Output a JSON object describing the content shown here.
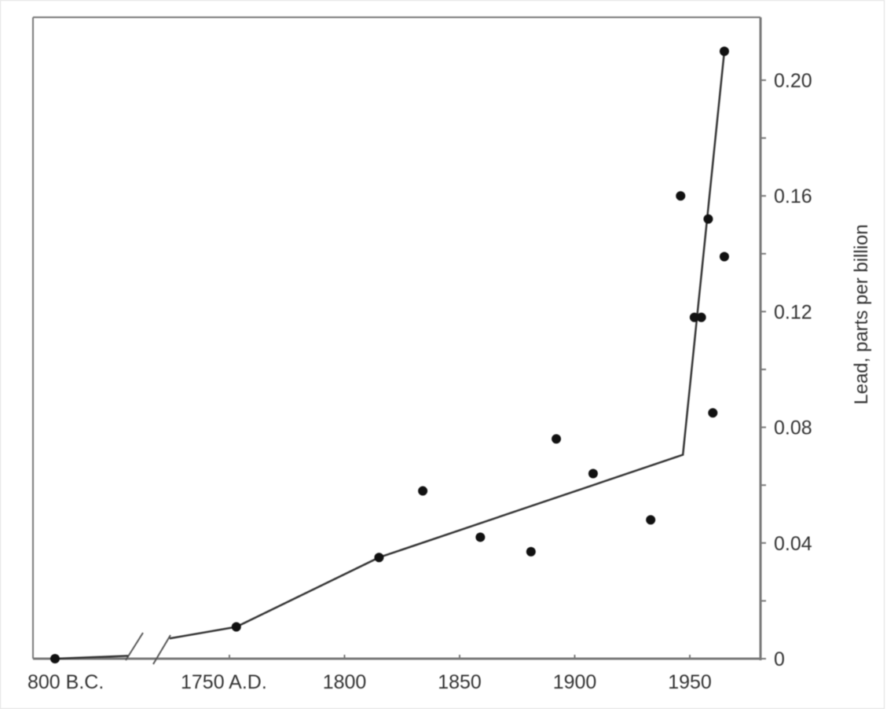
{
  "chart_data": {
    "type": "scatter",
    "title": "",
    "xlabel": "",
    "ylabel": "Lead, parts per billion",
    "ylim": [
      0,
      0.22
    ],
    "y_axis_side": "right",
    "y_ticks": [
      0,
      0.04,
      0.08,
      0.12,
      0.16,
      0.2
    ],
    "y_tick_labels": [
      "0",
      "0.04",
      "0.08",
      "0.12",
      "0.16",
      "0.20"
    ],
    "x_axis_break": true,
    "x_tick_labels": [
      "800 B.C.",
      "1750 A.D.",
      "1800",
      "1850",
      "1900",
      "1950"
    ],
    "x_ticks": [
      -800,
      1750,
      1800,
      1850,
      1900,
      1950
    ],
    "xlim_after_break": [
      1715,
      1985
    ],
    "grid": false,
    "legend": "none",
    "points": [
      {
        "x": -800,
        "y": 0.0
      },
      {
        "x": 1753,
        "y": 0.011
      },
      {
        "x": 1815,
        "y": 0.035
      },
      {
        "x": 1834,
        "y": 0.058
      },
      {
        "x": 1859,
        "y": 0.042
      },
      {
        "x": 1881,
        "y": 0.037
      },
      {
        "x": 1892,
        "y": 0.076
      },
      {
        "x": 1908,
        "y": 0.064
      },
      {
        "x": 1933,
        "y": 0.048
      },
      {
        "x": 1946,
        "y": 0.16
      },
      {
        "x": 1952,
        "y": 0.118
      },
      {
        "x": 1955,
        "y": 0.118
      },
      {
        "x": 1958,
        "y": 0.152
      },
      {
        "x": 1960,
        "y": 0.085
      },
      {
        "x": 1965,
        "y": 0.139
      },
      {
        "x": 1965,
        "y": 0.21
      }
    ],
    "trend_line": {
      "before_break": [
        {
          "x": -800,
          "y": 0.0
        },
        {
          "x": -500,
          "y": 0.001
        }
      ],
      "after_break": [
        {
          "x": 1724,
          "y": 0.007
        },
        {
          "x": 1753,
          "y": 0.011
        },
        {
          "x": 1815,
          "y": 0.035
        },
        {
          "x": 1947,
          "y": 0.0705
        },
        {
          "x": 1965,
          "y": 0.21
        }
      ]
    },
    "colors": {
      "marks": "#111111",
      "axis": "#666666",
      "text": "#333333"
    }
  }
}
